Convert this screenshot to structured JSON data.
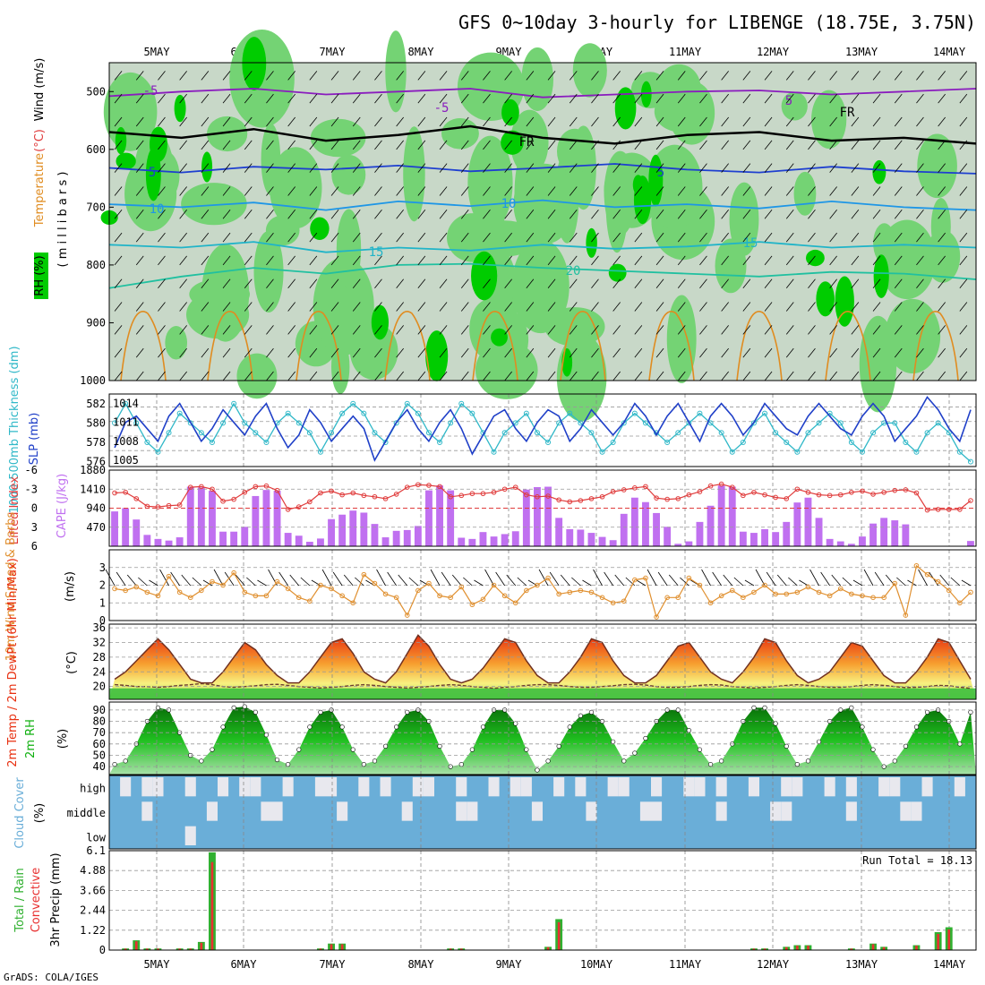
{
  "title": "GFS 0~10day 3-hourly for LIBENGE (18.75E, 3.75N)",
  "footer": "GrADS: COLA/IGES",
  "run_total": "Run Total = 18.13",
  "colors": {
    "rh_dark": "#00cc00",
    "rh_mid": "#74d374",
    "rh_light": "#c8d8c8",
    "temp_purple": "#8a1cbe",
    "temp_blue": "#1e3fd0",
    "temp_sky": "#1e96e6",
    "temp_cyan": "#20b4c8",
    "temp_teal": "#20c0a0",
    "temp_orange": "#e08c20",
    "slp": "#2040c8",
    "thick": "#30b8c8",
    "li": "#e03c3c",
    "cape": "#c070f0",
    "wind": "#e09030",
    "t2m_red": "#e83010",
    "t2m_yellow": "#f8f080",
    "rh2m": "#10b010",
    "cloud": "#6aaed8",
    "precip_green": "#30b030",
    "precip_red": "#e83030"
  },
  "chart_data": [
    {
      "type": "heatmap",
      "name": "upper-air",
      "x_ticks": [
        "5MAY",
        "6MAY",
        "7MAY",
        "8MAY",
        "9MAY",
        "10MAY",
        "11MAY",
        "12MAY",
        "13MAY",
        "14MAY"
      ],
      "y_ticks": [
        "500",
        "600",
        "700",
        "800",
        "900",
        "1000"
      ],
      "ylim": [
        1000,
        450
      ],
      "labels": {
        "rh": "RH (%)",
        "temperature": "Temperature",
        "temp_unit": "(°C)",
        "wind": "Wind (m/s)",
        "units": "( m i l l i b a r s )"
      },
      "contour_labels": [
        "-5",
        "-5",
        "5",
        "FR",
        "FR",
        "5",
        "5",
        "10",
        "10",
        "15",
        "15",
        "20"
      ],
      "isotherms": [
        {
          "label": "-5",
          "levels": [
            508,
            500,
            495,
            505,
            500,
            495,
            510,
            505,
            500,
            498,
            505,
            500,
            495
          ]
        },
        {
          "label": "FR",
          "levels": [
            570,
            580,
            565,
            585,
            575,
            560,
            580,
            590,
            575,
            570,
            585,
            580,
            590
          ]
        },
        {
          "label": "5",
          "levels": [
            632,
            640,
            630,
            635,
            628,
            638,
            632,
            625,
            635,
            640,
            630,
            638,
            642
          ]
        },
        {
          "label": "10",
          "levels": [
            695,
            700,
            692,
            705,
            690,
            698,
            688,
            700,
            695,
            702,
            690,
            700,
            705
          ]
        },
        {
          "label": "15",
          "levels": [
            765,
            770,
            760,
            778,
            770,
            775,
            765,
            772,
            768,
            760,
            770,
            765,
            770
          ]
        },
        {
          "label": "20",
          "levels": [
            840,
            820,
            805,
            815,
            800,
            798,
            805,
            810,
            815,
            820,
            812,
            815,
            825
          ]
        }
      ]
    },
    {
      "type": "line",
      "name": "slp-thickness",
      "ylabel_left": "1000-500mb Thickness (dm)",
      "ylabel_right": "SLP (mb)",
      "y_ticks_left": [
        "576",
        "578",
        "580",
        "582"
      ],
      "y_ticks_right": [
        "1005",
        "1008",
        "1011",
        "1014"
      ],
      "series": [
        {
          "name": "SLP",
          "values": [
            1007,
            1011,
            1012,
            1010,
            1008,
            1012,
            1014,
            1011,
            1008,
            1010,
            1013,
            1011,
            1009,
            1012,
            1014,
            1010,
            1007,
            1009,
            1013,
            1011,
            1008,
            1010,
            1012,
            1010,
            1005,
            1008,
            1011,
            1013,
            1010,
            1008,
            1011,
            1013,
            1010,
            1006,
            1009,
            1012,
            1013,
            1010,
            1008,
            1011,
            1013,
            1012,
            1008,
            1010,
            1013,
            1011,
            1009,
            1011,
            1014,
            1012,
            1009,
            1012,
            1014,
            1011,
            1008,
            1012,
            1014,
            1012,
            1009,
            1011,
            1014,
            1012,
            1010,
            1009,
            1012,
            1014,
            1012,
            1010,
            1009,
            1012,
            1014,
            1012,
            1008,
            1010,
            1012,
            1015,
            1013,
            1010,
            1008,
            1013
          ]
        },
        {
          "name": "Thickness",
          "values": [
            580,
            582,
            580,
            578,
            577,
            579,
            581,
            580,
            579,
            578,
            580,
            582,
            580,
            579,
            578,
            580,
            581,
            580,
            579,
            577,
            579,
            581,
            582,
            581,
            579,
            578,
            580,
            582,
            581,
            579,
            578,
            580,
            582,
            581,
            579,
            577,
            579,
            580,
            581,
            579,
            578,
            580,
            581,
            580,
            579,
            577,
            578,
            580,
            581,
            580,
            579,
            578,
            579,
            580,
            581,
            580,
            579,
            577,
            578,
            580,
            581,
            579,
            578,
            577,
            579,
            580,
            581,
            580,
            578,
            577,
            579,
            580,
            580,
            578,
            577,
            579,
            580,
            579,
            577,
            576
          ]
        }
      ]
    },
    {
      "type": "bar",
      "name": "cape-li",
      "ylabel_left": "Lifted Index",
      "ylabel_right": "CAPE (J/kg)",
      "y_ticks_left": [
        "-6",
        "-3",
        "0",
        "3",
        "6"
      ],
      "y_ticks_right": [
        "470",
        "940",
        "1410",
        "1880"
      ],
      "cape_values": [
        860,
        940,
        660,
        280,
        180,
        140,
        220,
        1470,
        1450,
        1370,
        360,
        360,
        480,
        1240,
        1390,
        1370,
        330,
        260,
        110,
        190,
        670,
        780,
        880,
        830,
        550,
        220,
        380,
        400,
        500,
        1380,
        1500,
        1380,
        210,
        180,
        350,
        240,
        300,
        370,
        1400,
        1460,
        1470,
        700,
        420,
        410,
        330,
        230,
        150,
        800,
        1200,
        1090,
        820,
        480,
        60,
        120,
        600,
        1000,
        1500,
        1470,
        360,
        330,
        420,
        350,
        600,
        1080,
        1200,
        700,
        180,
        120,
        60,
        240,
        560,
        700,
        640,
        540,
        10,
        10,
        10,
        10,
        10,
        130
      ],
      "li_values": [
        -2.4,
        -2.5,
        -1.5,
        -0.3,
        -0.2,
        -0.4,
        -0.5,
        -3.3,
        -3.4,
        -3.0,
        -1.1,
        -1.4,
        -2.5,
        -3.4,
        -3.5,
        -2.8,
        0.2,
        -0.2,
        -1.0,
        -2.4,
        -2.7,
        -2.1,
        -2.4,
        -2.0,
        -1.8,
        -1.5,
        -2.2,
        -3.3,
        -3.7,
        -3.6,
        -3.4,
        -1.8,
        -2.0,
        -2.3,
        -2.3,
        -2.5,
        -3.0,
        -3.3,
        -2.1,
        -1.8,
        -1.9,
        -1.3,
        -1.0,
        -1.2,
        -1.5,
        -1.8,
        -2.6,
        -2.9,
        -3.2,
        -3.4,
        -1.6,
        -1.4,
        -1.5,
        -2.1,
        -2.6,
        -3.5,
        -3.8,
        -3.3,
        -2.0,
        -2.5,
        -2.1,
        -1.7,
        -1.5,
        -3.0,
        -2.5,
        -2.1,
        -2.0,
        -2.1,
        -2.5,
        -2.7,
        -2.2,
        -2.5,
        -2.8,
        -2.9,
        -2.4,
        0.3,
        0.2,
        0.2,
        0.2,
        -1.2
      ]
    },
    {
      "type": "line",
      "name": "wind10m",
      "ylabel": "10m Wind Speed & Barbs",
      "unit": "(m/s)",
      "y_ticks": [
        "0",
        "1",
        "2",
        "3"
      ],
      "values": [
        1.8,
        1.7,
        1.9,
        1.6,
        1.4,
        2.5,
        1.6,
        1.3,
        1.7,
        2.2,
        2.0,
        2.7,
        1.6,
        1.4,
        1.4,
        2.2,
        1.8,
        1.3,
        1.1,
        2.0,
        1.8,
        1.4,
        1.0,
        2.6,
        2.1,
        1.5,
        1.3,
        0.3,
        1.7,
        2.1,
        1.4,
        1.3,
        1.9,
        0.9,
        1.2,
        2.0,
        1.4,
        1.0,
        1.7,
        2.0,
        2.4,
        1.5,
        1.6,
        1.7,
        1.6,
        1.3,
        1.0,
        1.1,
        2.3,
        2.4,
        0.2,
        1.3,
        1.3,
        2.4,
        2.0,
        1.0,
        1.4,
        1.7,
        1.3,
        1.6,
        2.0,
        1.5,
        1.5,
        1.6,
        1.9,
        1.6,
        1.4,
        1.8,
        1.5,
        1.4,
        1.3,
        1.3,
        2.1,
        0.3,
        3.1,
        2.6,
        2.2,
        1.7,
        1.0,
        1.6
      ]
    },
    {
      "type": "area",
      "name": "t2m",
      "ylabel": "2m Temp / 2m DewPt (6hr Min/Max)",
      "unit": "(°C)",
      "y_ticks": [
        "20",
        "24",
        "28",
        "32",
        "36"
      ],
      "temp": [
        22,
        24,
        27,
        30,
        33,
        30,
        26,
        22,
        21,
        21,
        24,
        28,
        32,
        30,
        26,
        23,
        21,
        21,
        24,
        28,
        32,
        33,
        29,
        24,
        22,
        21,
        24,
        29,
        34,
        31,
        26,
        22,
        21,
        22,
        25,
        29,
        33,
        32,
        27,
        23,
        21,
        21,
        24,
        28,
        33,
        32,
        27,
        23,
        21,
        21,
        23,
        27,
        31,
        32,
        28,
        24,
        22,
        21,
        24,
        28,
        33,
        32,
        27,
        23,
        21,
        22,
        24,
        28,
        32,
        31,
        27,
        23,
        21,
        21,
        24,
        28,
        33,
        32,
        27,
        22
      ],
      "dewpt": [
        20.5,
        20.3,
        20,
        20,
        19.8,
        20,
        20.3,
        20.5,
        20.8,
        20.5,
        20,
        19.8,
        20,
        20.2,
        20.5,
        20.6,
        20.3,
        20,
        19.8,
        19.6,
        19.8,
        20,
        20.3,
        20.5,
        20.3,
        20,
        19.8,
        19.6,
        19.8,
        20,
        20.3,
        20.5,
        20.3,
        20,
        19.8,
        19.5,
        19.8,
        20,
        20.3,
        20.5,
        20.5,
        20.3,
        20,
        19.8,
        19.8,
        20,
        20.2,
        20.5,
        20.6,
        20.4,
        20,
        19.8,
        19.8,
        20,
        20.3,
        20.5,
        20.4,
        20,
        19.8,
        19.6,
        19.8,
        20,
        20.3,
        20.5,
        20.3,
        20,
        19.8,
        19.8,
        20,
        20.3,
        20.5,
        20.3,
        20,
        19.7,
        19.8,
        20,
        20.3,
        20.2,
        19.8,
        19.5
      ]
    },
    {
      "type": "area",
      "name": "rh2m",
      "ylabel": "2m RH",
      "unit": "(%)",
      "y_ticks": [
        "40",
        "50",
        "60",
        "70",
        "80",
        "90"
      ],
      "values": [
        42,
        45,
        60,
        80,
        92,
        90,
        70,
        50,
        45,
        55,
        75,
        92,
        93,
        88,
        68,
        46,
        42,
        55,
        75,
        88,
        90,
        75,
        55,
        42,
        45,
        58,
        75,
        88,
        90,
        80,
        58,
        40,
        42,
        55,
        75,
        90,
        90,
        78,
        55,
        37,
        45,
        58,
        75,
        85,
        88,
        80,
        62,
        45,
        52,
        65,
        80,
        90,
        90,
        72,
        55,
        42,
        45,
        60,
        80,
        92,
        92,
        78,
        58,
        42,
        45,
        62,
        80,
        90,
        92,
        75,
        55,
        40,
        45,
        58,
        75,
        88,
        90,
        80,
        60,
        88
      ]
    },
    {
      "type": "heatmap",
      "name": "cloud",
      "ylabel": "Cloud Cover",
      "unit": "(%)",
      "rows": [
        "high",
        "middle",
        "low"
      ],
      "high": [
        0,
        1,
        0,
        1,
        1,
        0,
        0,
        1,
        0,
        0,
        1,
        0,
        1,
        1,
        0,
        0,
        1,
        0,
        0,
        1,
        1,
        0,
        0,
        1,
        0,
        1,
        0,
        0,
        1,
        1,
        0,
        0,
        1,
        0,
        0,
        1,
        0,
        1,
        1,
        0,
        0,
        1,
        0,
        1,
        0,
        0,
        1,
        1,
        0,
        0,
        1,
        0,
        0,
        1,
        1,
        0,
        1,
        0,
        0,
        1,
        0,
        0,
        1,
        1,
        0,
        0,
        1,
        0,
        1,
        0,
        0,
        1,
        1,
        0,
        0,
        1,
        0,
        0,
        1,
        0
      ],
      "middle": [
        0,
        0,
        0,
        1,
        0,
        0,
        0,
        0,
        0,
        1,
        0,
        0,
        0,
        0,
        1,
        1,
        0,
        0,
        0,
        0,
        0,
        1,
        0,
        0,
        0,
        0,
        0,
        1,
        0,
        0,
        0,
        0,
        1,
        1,
        0,
        0,
        0,
        0,
        0,
        1,
        0,
        0,
        0,
        0,
        1,
        0,
        0,
        0,
        0,
        1,
        1,
        0,
        0,
        0,
        0,
        0,
        1,
        0,
        0,
        0,
        0,
        1,
        1,
        0,
        0,
        0,
        0,
        0,
        1,
        0,
        0,
        0,
        0,
        1,
        1,
        0,
        0,
        0,
        0,
        0
      ],
      "low": [
        0,
        0,
        0,
        0,
        0,
        0,
        0,
        1,
        0,
        0,
        0,
        0,
        0,
        0,
        0,
        0,
        0,
        0,
        0,
        0,
        0,
        0,
        0,
        0,
        0,
        0,
        0,
        0,
        0,
        0,
        0,
        0,
        0,
        0,
        0,
        0,
        0,
        0,
        0,
        0,
        0,
        0,
        0,
        0,
        0,
        0,
        0,
        0,
        0,
        0,
        0,
        0,
        0,
        0,
        0,
        0,
        0,
        0,
        0,
        0,
        0,
        0,
        0,
        0,
        0,
        0,
        0,
        0,
        0,
        0,
        0,
        0,
        0,
        0,
        0,
        0,
        0,
        0,
        0,
        0
      ]
    },
    {
      "type": "bar",
      "name": "precip",
      "ylabel": "3hr Precip (mm)",
      "ylabel_left": "Total / Rain",
      "ylabel_left2": "Convective",
      "y_ticks": [
        "0",
        "1.22",
        "2.44",
        "3.66",
        "4.88",
        "6.1"
      ],
      "total": [
        0,
        0.1,
        0.6,
        0.1,
        0.1,
        0,
        0.1,
        0.1,
        0.5,
        6.0,
        0,
        0,
        0,
        0,
        0,
        0,
        0,
        0,
        0,
        0.1,
        0.4,
        0.4,
        0,
        0,
        0,
        0,
        0,
        0,
        0,
        0,
        0,
        0.1,
        0.1,
        0,
        0,
        0,
        0,
        0,
        0,
        0,
        0.2,
        1.9,
        0,
        0,
        0,
        0,
        0,
        0,
        0,
        0,
        0,
        0,
        0,
        0,
        0,
        0,
        0,
        0,
        0,
        0.1,
        0.1,
        0,
        0.2,
        0.3,
        0.3,
        0,
        0,
        0,
        0.1,
        0,
        0.4,
        0.2,
        0,
        0,
        0.3,
        0,
        1.1,
        1.4,
        0,
        0
      ]
    }
  ]
}
